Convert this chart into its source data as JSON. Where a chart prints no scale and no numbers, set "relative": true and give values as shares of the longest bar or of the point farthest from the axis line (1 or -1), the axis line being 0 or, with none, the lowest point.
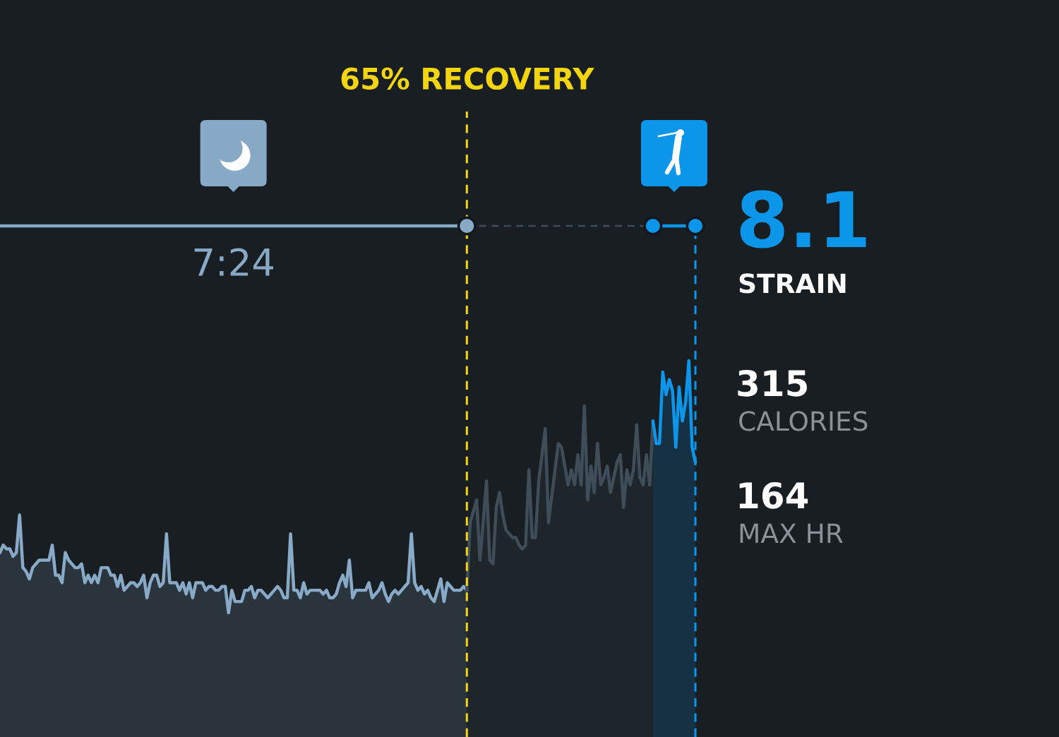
{
  "chart_data": [
    {
      "type": "area",
      "relative": true,
      "categories": [
        null,
        null,
        null,
        null,
        null,
        null,
        null,
        null,
        null,
        null,
        null,
        null,
        null,
        null,
        null,
        null,
        null,
        null,
        null,
        null,
        null,
        null,
        null,
        null,
        null,
        null,
        null,
        null,
        null,
        null,
        null,
        null,
        null,
        null,
        null,
        null,
        null,
        null,
        null,
        null,
        null,
        null,
        null,
        null,
        null,
        null,
        null,
        null,
        null,
        null,
        null,
        null,
        null,
        null,
        null,
        null,
        null,
        null,
        null,
        null,
        null,
        null,
        null,
        null,
        null,
        null,
        null,
        null,
        null,
        null,
        null,
        null,
        null,
        null,
        null,
        null,
        null,
        null,
        null,
        null,
        null,
        null,
        null,
        null,
        null,
        null,
        null,
        null,
        null,
        null,
        null,
        null,
        null,
        null,
        null,
        null,
        null,
        null,
        null,
        null,
        null,
        null,
        null,
        null,
        null,
        null,
        null,
        null,
        null,
        null,
        null,
        null,
        null,
        null,
        null,
        null,
        null,
        null,
        null,
        null,
        null,
        null,
        null,
        null,
        null,
        null,
        null,
        null,
        null,
        null,
        null,
        null,
        null,
        null,
        null,
        null,
        null,
        null,
        null,
        null,
        null,
        null,
        null,
        null,
        null,
        null,
        null,
        null,
        null,
        null,
        null,
        null,
        null,
        null,
        null,
        null,
        null,
        null,
        null,
        null,
        null,
        null,
        null,
        null,
        null,
        null,
        null,
        null,
        null,
        null,
        null,
        null,
        null,
        null,
        null,
        null,
        null,
        null,
        null,
        null,
        null,
        null,
        null,
        null,
        null,
        null,
        null,
        null,
        null,
        null,
        null,
        null,
        null,
        null,
        null,
        null,
        null,
        null,
        null,
        null,
        null,
        null,
        null,
        null,
        null,
        null,
        null,
        null,
        null,
        null,
        null,
        null,
        null,
        null
      ],
      "series": [
        {
          "color": "#88aac7",
          "values": [
            0.49,
            0.51,
            0.5,
            0.5,
            0.48,
            0.49,
            0.59,
            0.45,
            0.44,
            0.42,
            0.45,
            0.46,
            0.47,
            0.47,
            0.47,
            0.47,
            0.51,
            0.43,
            0.43,
            0.41,
            0.49,
            0.47,
            0.46,
            0.45,
            0.45,
            0.46,
            0.41,
            0.43,
            0.41,
            0.43,
            0.41,
            0.45,
            0.45,
            0.45,
            0.43,
            0.43,
            0.4,
            0.43,
            0.39,
            0.4,
            0.41,
            0.41,
            0.4,
            0.41,
            0.43,
            0.37,
            0.41,
            0.43,
            0.43,
            0.4,
            0.41,
            0.54,
            0.41,
            0.41,
            0.41,
            0.39,
            0.41,
            0.38,
            0.41,
            0.37,
            0.41,
            0.41,
            0.41,
            0.39,
            0.4,
            0.4,
            0.39,
            0.39,
            0.4,
            0.4,
            0.33,
            0.39,
            0.36,
            0.36,
            0.36,
            0.39,
            0.39,
            0.4,
            0.37,
            0.39,
            0.39,
            0.38,
            0.37,
            0.38,
            0.39,
            0.4,
            0.39,
            0.37,
            0.37,
            0.54,
            0.39,
            0.39,
            0.37,
            0.41,
            0.38,
            0.39,
            0.39,
            0.39,
            0.39,
            0.38,
            0.39,
            0.37,
            0.37,
            0.38,
            0.41,
            0.43,
            0.4,
            0.47,
            0.37,
            0.39,
            0.39,
            0.39,
            0.39,
            0.41,
            0.37,
            0.38,
            0.39,
            0.41,
            0.38,
            0.36,
            0.38,
            0.39,
            0.38,
            0.39,
            0.4,
            0.41,
            0.54,
            0.41,
            0.39,
            0.4,
            0.38,
            0.39,
            0.37,
            0.36,
            0.39,
            0.42,
            0.36,
            0.41,
            0.4,
            0.39,
            0.39,
            0.39,
            0.4,
            0.39,
            null,
            null,
            null,
            null,
            null,
            null,
            null,
            null,
            null,
            null,
            null,
            null,
            null,
            null,
            null,
            null,
            null,
            null,
            null,
            null,
            null,
            null,
            null,
            null,
            null,
            null,
            null,
            null,
            null,
            null,
            null,
            null,
            null,
            null,
            null,
            null,
            null,
            null,
            null,
            null,
            null,
            null,
            null,
            null,
            null,
            null,
            null,
            null,
            null,
            null,
            null,
            null,
            null,
            null,
            null,
            null,
            null,
            null,
            null,
            null,
            null,
            null,
            null,
            null,
            null,
            null,
            null,
            null,
            null,
            null
          ]
        },
        {
          "color": "#3f4d59",
          "values": [
            null,
            null,
            null,
            null,
            null,
            null,
            null,
            null,
            null,
            null,
            null,
            null,
            null,
            null,
            null,
            null,
            null,
            null,
            null,
            null,
            null,
            null,
            null,
            null,
            null,
            null,
            null,
            null,
            null,
            null,
            null,
            null,
            null,
            null,
            null,
            null,
            null,
            null,
            null,
            null,
            null,
            null,
            null,
            null,
            null,
            null,
            null,
            null,
            null,
            null,
            null,
            null,
            null,
            null,
            null,
            null,
            null,
            null,
            null,
            null,
            null,
            null,
            null,
            null,
            null,
            null,
            null,
            null,
            null,
            null,
            null,
            null,
            null,
            null,
            null,
            null,
            null,
            null,
            null,
            null,
            null,
            null,
            null,
            null,
            null,
            null,
            null,
            null,
            null,
            null,
            null,
            null,
            null,
            null,
            null,
            null,
            null,
            null,
            null,
            null,
            null,
            null,
            null,
            null,
            null,
            null,
            null,
            null,
            null,
            null,
            null,
            null,
            null,
            null,
            null,
            null,
            null,
            null,
            null,
            null,
            null,
            null,
            null,
            null,
            null,
            null,
            null,
            null,
            null,
            null,
            null,
            null,
            null,
            null,
            null,
            null,
            null,
            null,
            null,
            null,
            null,
            null,
            null,
            0.39,
            0.57,
            0.6,
            0.63,
            0.47,
            0.57,
            0.68,
            0.47,
            0.46,
            0.61,
            0.65,
            0.59,
            0.55,
            0.54,
            0.53,
            0.53,
            0.51,
            0.5,
            0.51,
            0.71,
            0.53,
            0.53,
            0.68,
            0.75,
            0.82,
            0.57,
            0.64,
            0.71,
            0.78,
            0.77,
            0.72,
            0.67,
            0.71,
            0.67,
            0.75,
            0.67,
            0.88,
            0.63,
            0.72,
            0.65,
            0.78,
            0.67,
            0.69,
            0.72,
            0.65,
            0.69,
            0.73,
            0.75,
            0.61,
            0.71,
            0.67,
            0.71,
            0.83,
            0.69,
            0.67,
            0.75,
            0.67,
            0.84,
            null,
            null,
            null,
            null,
            null,
            null,
            null,
            null,
            null,
            null,
            null,
            null,
            null
          ]
        },
        {
          "color": "#0c96ea",
          "values": [
            null,
            null,
            null,
            null,
            null,
            null,
            null,
            null,
            null,
            null,
            null,
            null,
            null,
            null,
            null,
            null,
            null,
            null,
            null,
            null,
            null,
            null,
            null,
            null,
            null,
            null,
            null,
            null,
            null,
            null,
            null,
            null,
            null,
            null,
            null,
            null,
            null,
            null,
            null,
            null,
            null,
            null,
            null,
            null,
            null,
            null,
            null,
            null,
            null,
            null,
            null,
            null,
            null,
            null,
            null,
            null,
            null,
            null,
            null,
            null,
            null,
            null,
            null,
            null,
            null,
            null,
            null,
            null,
            null,
            null,
            null,
            null,
            null,
            null,
            null,
            null,
            null,
            null,
            null,
            null,
            null,
            null,
            null,
            null,
            null,
            null,
            null,
            null,
            null,
            null,
            null,
            null,
            null,
            null,
            null,
            null,
            null,
            null,
            null,
            null,
            null,
            null,
            null,
            null,
            null,
            null,
            null,
            null,
            null,
            null,
            null,
            null,
            null,
            null,
            null,
            null,
            null,
            null,
            null,
            null,
            null,
            null,
            null,
            null,
            null,
            null,
            null,
            null,
            null,
            null,
            null,
            null,
            null,
            null,
            null,
            null,
            null,
            null,
            null,
            null,
            null,
            null,
            null,
            null,
            null,
            null,
            null,
            null,
            null,
            null,
            null,
            null,
            null,
            null,
            null,
            null,
            null,
            null,
            null,
            null,
            null,
            null,
            null,
            null,
            null,
            null,
            null,
            null,
            null,
            null,
            null,
            null,
            null,
            null,
            null,
            null,
            null,
            null,
            null,
            null,
            null,
            null,
            null,
            null,
            null,
            null,
            null,
            null,
            null,
            null,
            null,
            null,
            null,
            null,
            null,
            null,
            null,
            null,
            null,
            null,
            0.84,
            0.78,
            0.78,
            0.97,
            0.91,
            0.95,
            0.92,
            0.77,
            0.93,
            0.84,
            0.89,
            1.0,
            0.77,
            0.73
          ]
        }
      ],
      "annotations": [
        "65% RECOVERY",
        "7:24"
      ]
    },
    {
      "type": "other",
      "categories": [
        "STRAIN",
        "CALORIES",
        "MAX HR"
      ],
      "values": [
        8.1,
        315,
        164
      ],
      "colors": [
        "#0c96ea",
        "#ffffff",
        "#ffffff"
      ],
      "data_labels": true
    }
  ]
}
